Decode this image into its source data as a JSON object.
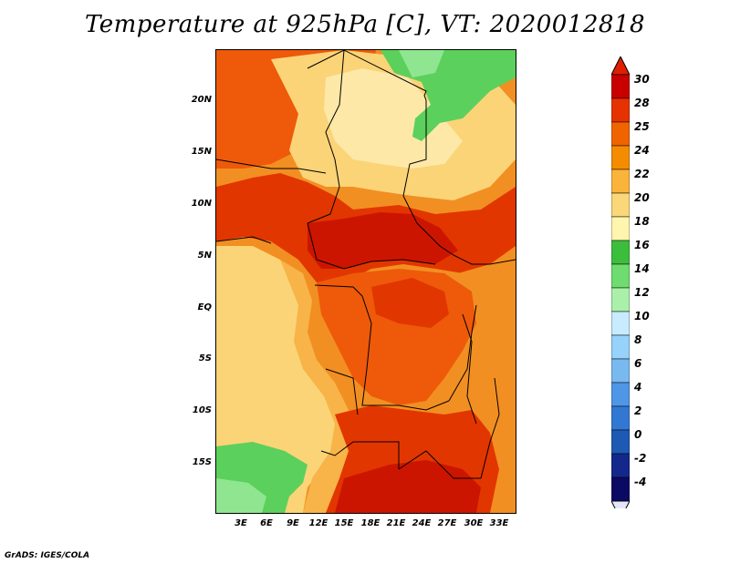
{
  "title": "Temperature at 925hPa [C], VT: 2020012818",
  "lat_labels": [
    "20N",
    "15N",
    "10N",
    "5N",
    "EQ",
    "5S",
    "10S",
    "15S"
  ],
  "lon_labels": [
    "3E",
    "6E",
    "9E",
    "12E",
    "15E",
    "18E",
    "21E",
    "24E",
    "27E",
    "30E",
    "33E"
  ],
  "colorbar": {
    "labels": [
      "30",
      "28",
      "25",
      "24",
      "22",
      "20",
      "18",
      "16",
      "14",
      "12",
      "10",
      "8",
      "6",
      "4",
      "2",
      "0",
      "-2",
      "-4"
    ],
    "colors": [
      "#c80000",
      "#e63200",
      "#f06400",
      "#f58c00",
      "#fab43c",
      "#fad778",
      "#fff5af",
      "#3cbe3c",
      "#6edc6e",
      "#aaf0aa",
      "#c8ebff",
      "#96d2fa",
      "#78b9f0",
      "#5096e6",
      "#3278d2",
      "#1e5ab4",
      "#14288c",
      "#0a0a64"
    ],
    "top_arrow_color": "#e01e00",
    "bottom_arrow_color": "#e6e6fa"
  },
  "map_colors": {
    "dark_red": "#cc1500",
    "red": "#e23600",
    "orange_red": "#ee5a0a",
    "orange": "#f28f22",
    "light_orange": "#f8b448",
    "pale_yellow": "#fbd478",
    "cream": "#fde8a8",
    "green": "#5cd05c",
    "light_green": "#90e690",
    "border": "#000000"
  },
  "credit": "GrADS: IGES/COLA"
}
